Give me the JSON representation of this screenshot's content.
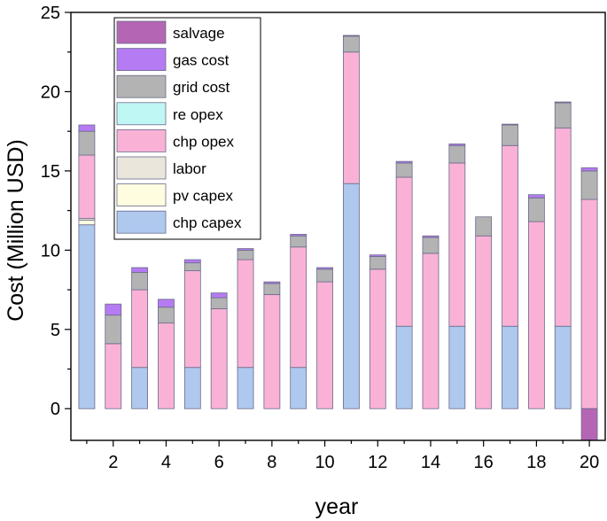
{
  "chart_data": {
    "type": "bar",
    "stacked": true,
    "title": "",
    "xlabel": "year",
    "ylabel": "Cost (Million USD)",
    "xlim": [
      0.4,
      20.6
    ],
    "ylim": [
      -2,
      25
    ],
    "xticks": [
      2,
      4,
      6,
      8,
      10,
      12,
      14,
      16,
      18,
      20
    ],
    "yticks": [
      0,
      5,
      10,
      15,
      20,
      25
    ],
    "legend_position": "top-left",
    "categories": [
      1,
      2,
      3,
      4,
      5,
      6,
      7,
      8,
      9,
      10,
      11,
      12,
      13,
      14,
      15,
      16,
      17,
      18,
      19,
      20
    ],
    "series": [
      {
        "name": "chp capex",
        "color": "#aec8ee",
        "values": [
          11.6,
          0,
          2.6,
          0,
          2.6,
          0,
          2.6,
          0,
          2.6,
          0,
          14.2,
          0,
          5.2,
          0,
          5.2,
          0,
          5.2,
          0,
          5.2,
          0
        ]
      },
      {
        "name": "pv capex",
        "color": "#fffde0",
        "values": [
          0.3,
          0,
          0,
          0,
          0,
          0,
          0,
          0,
          0,
          0,
          0,
          0,
          0,
          0,
          0,
          0,
          0,
          0,
          0,
          0
        ]
      },
      {
        "name": "labor",
        "color": "#ebe6dc",
        "values": [
          0.1,
          0,
          0,
          0,
          0,
          0,
          0,
          0,
          0,
          0,
          0,
          0,
          0,
          0,
          0,
          0,
          0,
          0,
          0,
          0
        ]
      },
      {
        "name": "chp opex",
        "color": "#f9b2d6",
        "values": [
          4.0,
          4.1,
          4.9,
          5.4,
          6.1,
          6.3,
          6.8,
          7.2,
          7.6,
          8.0,
          8.3,
          8.8,
          9.4,
          9.8,
          10.3,
          10.9,
          11.4,
          11.8,
          12.5,
          13.2
        ]
      },
      {
        "name": "re opex",
        "color": "#bff7f5",
        "values": [
          0,
          0,
          0,
          0,
          0,
          0,
          0,
          0,
          0,
          0,
          0,
          0,
          0,
          0,
          0,
          0,
          0,
          0,
          0,
          0
        ]
      },
      {
        "name": "grid cost",
        "color": "#b3b3b3",
        "values": [
          1.5,
          1.8,
          1.1,
          1.0,
          0.5,
          0.7,
          0.6,
          0.7,
          0.7,
          0.8,
          1.0,
          0.8,
          0.9,
          1.0,
          1.1,
          1.2,
          1.3,
          1.5,
          1.6,
          1.8
        ]
      },
      {
        "name": "gas cost",
        "color": "#b57bf2",
        "values": [
          0.4,
          0.7,
          0.3,
          0.5,
          0.2,
          0.3,
          0.1,
          0.1,
          0.1,
          0.1,
          0.05,
          0.1,
          0.1,
          0.1,
          0.1,
          0,
          0.05,
          0.2,
          0.05,
          0.2
        ]
      },
      {
        "name": "salvage",
        "color": "#b466b4",
        "values": [
          0,
          0,
          0,
          0,
          0,
          0,
          0,
          0,
          0,
          0,
          0,
          0,
          0,
          0,
          0,
          0,
          0,
          0,
          0,
          -2.0
        ]
      }
    ],
    "legend_order": [
      "salvage",
      "gas cost",
      "grid cost",
      "re opex",
      "chp opex",
      "labor",
      "pv capex",
      "chp capex"
    ]
  }
}
